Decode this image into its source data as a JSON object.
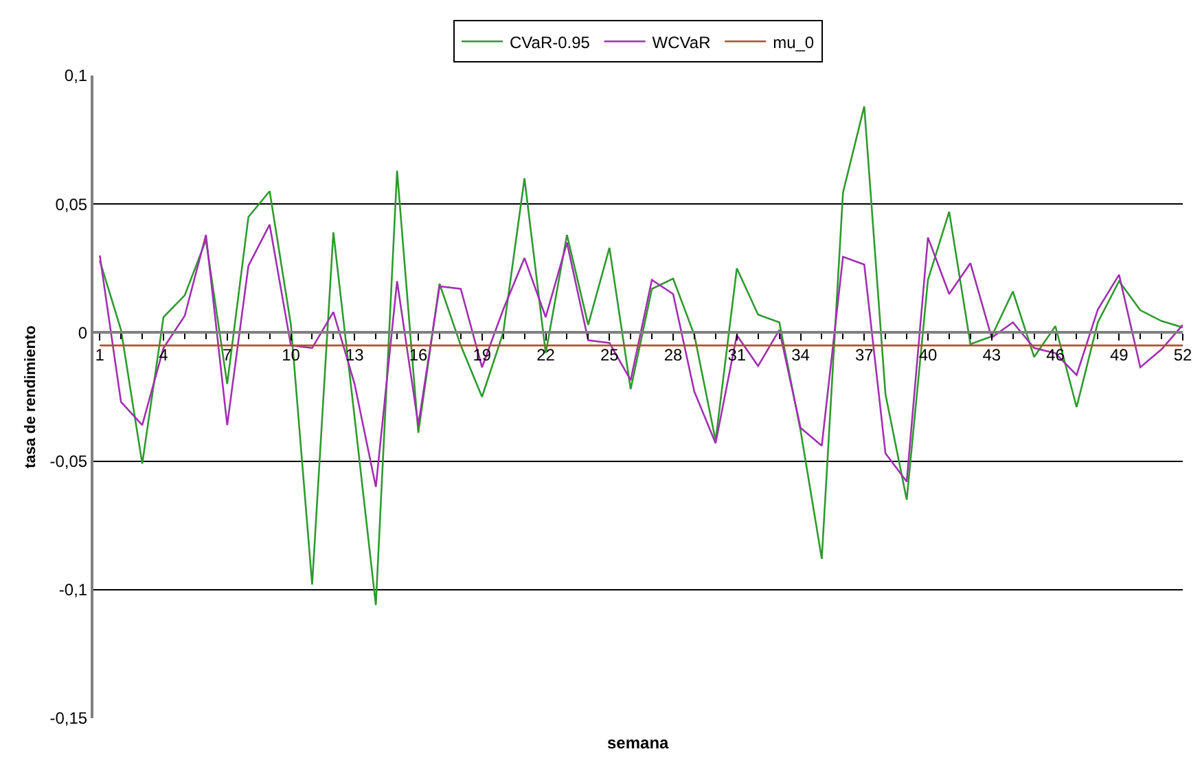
{
  "chart_data": {
    "type": "line",
    "xlabel": "semana",
    "ylabel": "tasa de rendimiento",
    "x": [
      1,
      2,
      3,
      4,
      5,
      6,
      7,
      8,
      9,
      10,
      11,
      12,
      13,
      14,
      15,
      16,
      17,
      18,
      19,
      20,
      21,
      22,
      23,
      24,
      25,
      26,
      27,
      28,
      29,
      30,
      31,
      32,
      33,
      34,
      35,
      36,
      37,
      38,
      39,
      40,
      41,
      42,
      43,
      44,
      45,
      46,
      47,
      48,
      49,
      50,
      51,
      52
    ],
    "series": [
      {
        "name": "CVaR-0.95",
        "color": "#2e9a2e",
        "values": [
          0.028,
          0.001,
          -0.051,
          0.006,
          0.0145,
          0.036,
          -0.02,
          0.045,
          0.055,
          0.003,
          -0.098,
          0.039,
          -0.033,
          -0.106,
          0.063,
          -0.039,
          0.019,
          -0.005,
          -0.025,
          0,
          0.06,
          -0.008,
          0.038,
          0.003,
          0.033,
          -0.022,
          0.017,
          0.021,
          -0.001,
          -0.042,
          0.025,
          0.007,
          0.004,
          -0.038,
          -0.088,
          0.0545,
          0.088,
          -0.024,
          -0.065,
          0.0205,
          0.047,
          -0.0045,
          -0.0015,
          0.016,
          -0.0095,
          0.0025,
          -0.029,
          0.004,
          0.02,
          0.0087,
          0.0045,
          0.002
        ]
      },
      {
        "name": "WCVaR",
        "color": "#a030b0",
        "values": [
          0.03,
          -0.027,
          -0.036,
          -0.006,
          0.0065,
          0.038,
          -0.036,
          0.026,
          0.042,
          -0.005,
          -0.006,
          0.008,
          -0.02,
          -0.06,
          0.02,
          -0.036,
          0.018,
          0.017,
          -0.0135,
          0.009,
          0.029,
          0.006,
          0.035,
          -0.003,
          -0.004,
          -0.0185,
          0.0205,
          0.015,
          -0.023,
          -0.043,
          -0.001,
          -0.013,
          0.001,
          -0.037,
          -0.044,
          0.0295,
          0.0265,
          -0.047,
          -0.058,
          0.037,
          0.015,
          0.027,
          -0.002,
          0.004,
          -0.006,
          -0.008,
          -0.0165,
          0.009,
          0.0225,
          -0.0135,
          -0.0065,
          0.003
        ]
      },
      {
        "name": "mu_0",
        "color": "#b5501e",
        "values": [
          -0.005,
          -0.005,
          -0.005,
          -0.005,
          -0.005,
          -0.005,
          -0.005,
          -0.005,
          -0.005,
          -0.005,
          -0.005,
          -0.005,
          -0.005,
          -0.005,
          -0.005,
          -0.005,
          -0.005,
          -0.005,
          -0.005,
          -0.005,
          -0.005,
          -0.005,
          -0.005,
          -0.005,
          -0.005,
          -0.005,
          -0.005,
          -0.005,
          -0.005,
          -0.005,
          -0.005,
          -0.005,
          -0.005,
          -0.005,
          -0.005,
          -0.005,
          -0.005,
          -0.005,
          -0.005,
          -0.005,
          -0.005,
          -0.005,
          -0.005,
          -0.005,
          -0.005,
          -0.005,
          -0.005,
          -0.005,
          -0.005,
          -0.005,
          -0.005,
          -0.005
        ]
      }
    ],
    "xlim": [
      0.7,
      52
    ],
    "xticks": [
      1,
      4,
      7,
      10,
      13,
      16,
      19,
      22,
      25,
      28,
      31,
      34,
      37,
      40,
      43,
      46,
      49,
      52
    ],
    "ylim": [
      -0.15,
      0.1
    ],
    "yticks": [
      {
        "value": -0.15,
        "label": "-0,15"
      },
      {
        "value": -0.1,
        "label": "-0,1"
      },
      {
        "value": -0.05,
        "label": "-0,05"
      },
      {
        "value": 0,
        "label": "0"
      },
      {
        "value": 0.05,
        "label": "0,05"
      },
      {
        "value": 0.1,
        "label": "0,1"
      }
    ],
    "grid": "y",
    "legend": "top",
    "marker": "none",
    "line_style": "solid"
  }
}
